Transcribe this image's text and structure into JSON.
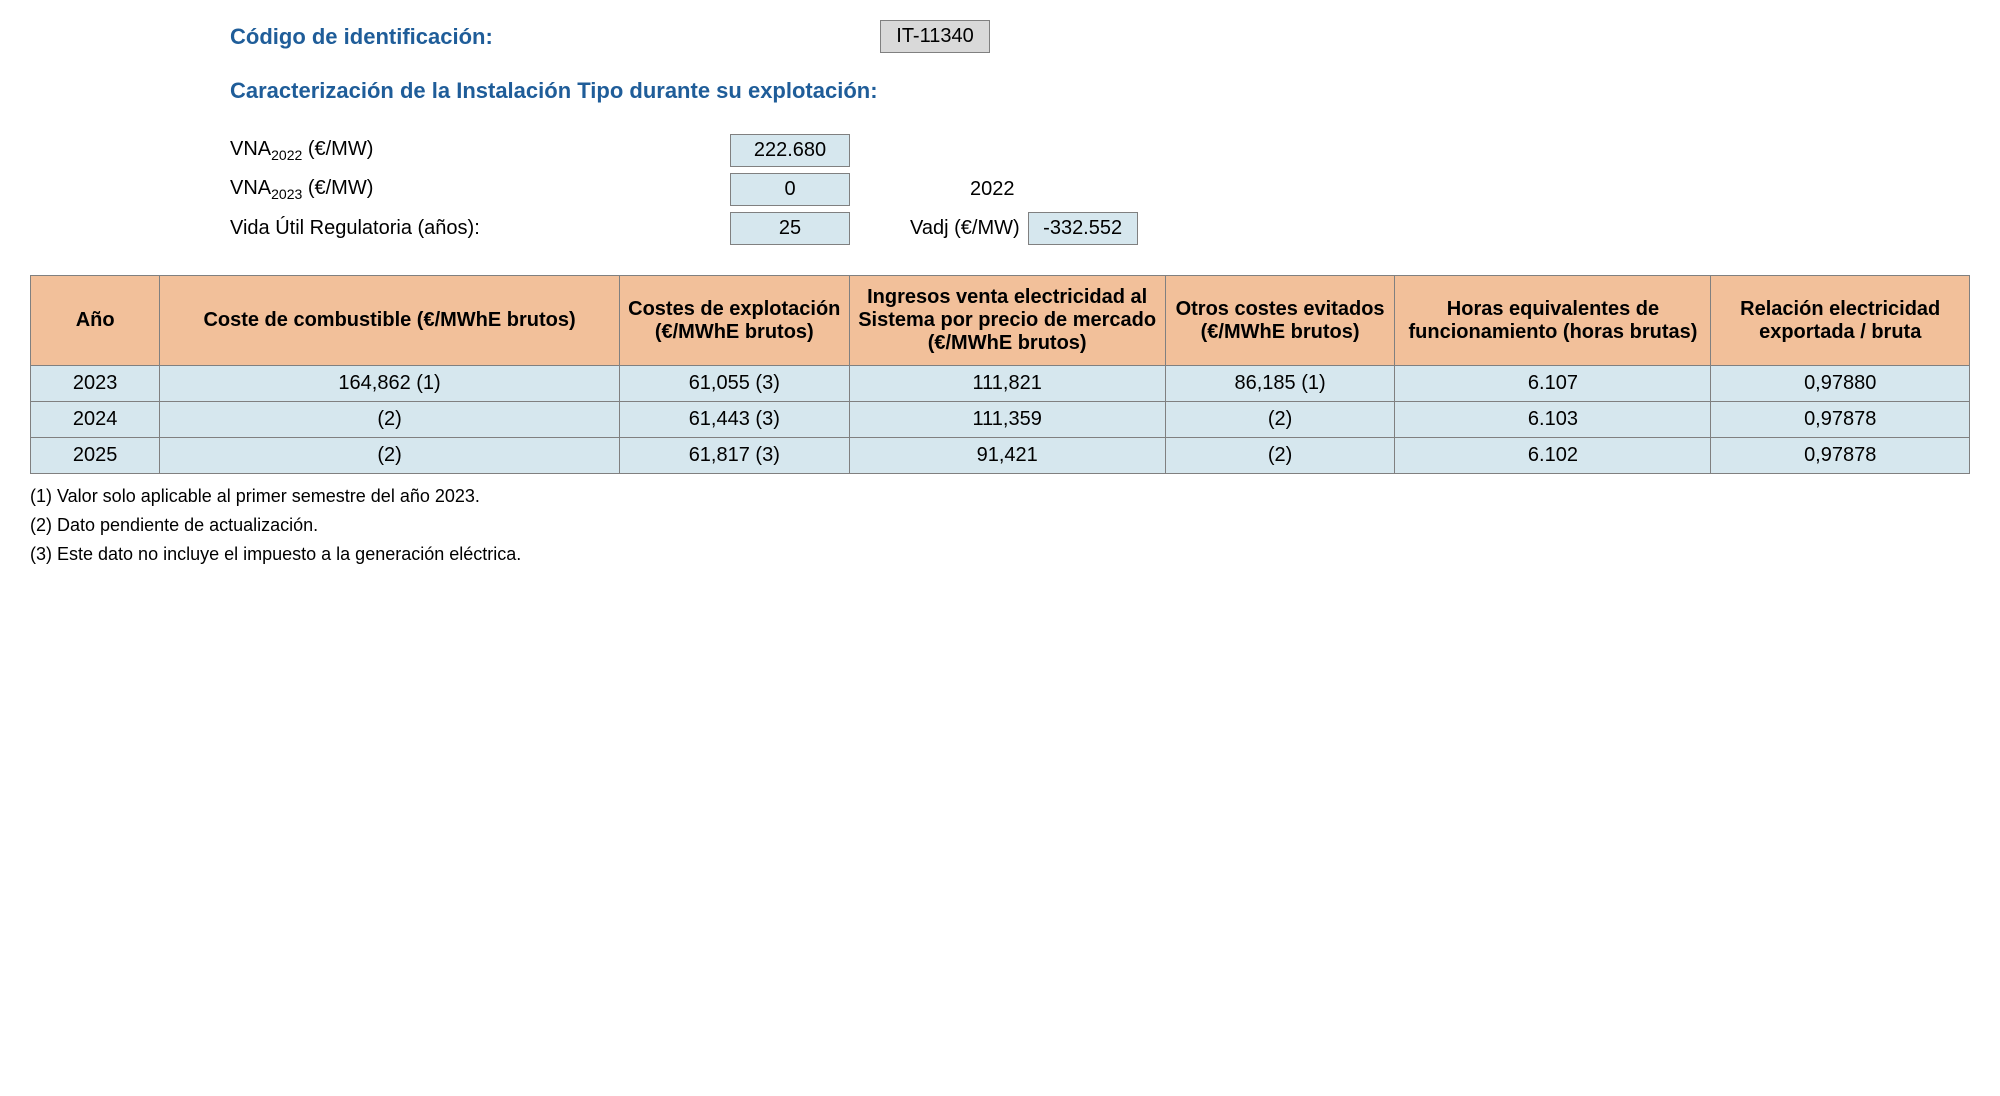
{
  "header": {
    "id_label": "Código de identificación:",
    "id_value": "IT-11340",
    "section_title": "Caracterización de la Instalación Tipo durante su explotación:",
    "vna2022_label_prefix": "VNA",
    "vna2022_sub": "2022",
    "vna2022_unit": " (€/MW)",
    "vna2022_value": "222.680",
    "vna2023_label_prefix": "VNA",
    "vna2023_sub": "2023",
    "vna2023_unit": " (€/MW)",
    "vna2023_value": "0",
    "vna2023_right": "2022",
    "vida_label": "Vida Útil Regulatoria (años):",
    "vida_value": "25",
    "vadj_label": "Vadj (€/MW)",
    "vadj_value": "-332.552"
  },
  "table": {
    "columns": [
      "Año",
      "Coste de combustible (€/MWhE brutos)",
      "Costes de explotación (€/MWhE brutos)",
      "Ingresos venta electricidad al Sistema por precio de mercado (€/MWhE brutos)",
      "Otros costes evitados (€/MWhE brutos)",
      "Horas equivalentes de funcionamiento (horas brutas)",
      "Relación electricidad exportada / bruta"
    ],
    "rows": [
      [
        "2023",
        "164,862 (1)",
        "61,055 (3)",
        "111,821",
        "86,185 (1)",
        "6.107",
        "0,97880"
      ],
      [
        "2024",
        "(2)",
        "61,443 (3)",
        "111,359",
        "(2)",
        "6.103",
        "0,97878"
      ],
      [
        "2025",
        "(2)",
        "61,817 (3)",
        "91,421",
        "(2)",
        "6.102",
        "0,97878"
      ]
    ],
    "header_bg": "#f2c09a",
    "cell_bg": "#d6e7ee",
    "border_color": "#808080"
  },
  "footnotes": [
    "(1) Valor solo aplicable al primer semestre del año 2023.",
    "(2) Dato pendiente de actualización.",
    "(3) Este dato no incluye el impuesto a la generación eléctrica."
  ]
}
